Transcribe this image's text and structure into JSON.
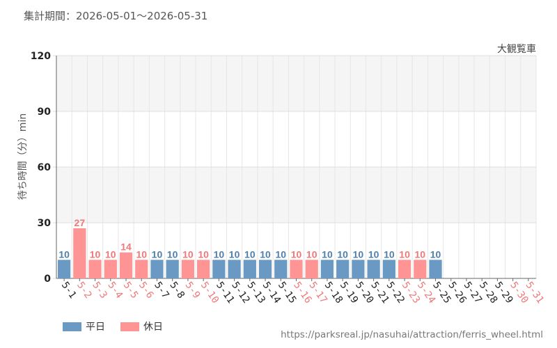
{
  "header": {
    "period": "集計期間：2026-05-01～2026-05-31",
    "attraction": "大観覧車"
  },
  "footer": {
    "source": "https://parksreal.jp/nasuhai/attraction/ferris_wheel.html"
  },
  "legend": [
    {
      "label": "平日",
      "color": "#6a9ac4"
    },
    {
      "label": "休日",
      "color": "#ff9494"
    }
  ],
  "chart_data": {
    "type": "bar",
    "ylabel": "待ち時間（分）min",
    "ylim": [
      0,
      120
    ],
    "yticks": [
      0,
      30,
      60,
      90,
      120
    ],
    "grid": true,
    "colors": {
      "weekday": "#6a9ac4",
      "holiday": "#ff9494",
      "weekday_text": "#4f80ad",
      "holiday_text": "#f07878"
    },
    "categories": [
      "5-1",
      "5-2",
      "5-3",
      "5-4",
      "5-5",
      "5-6",
      "5-7",
      "5-8",
      "5-9",
      "5-10",
      "5-11",
      "5-12",
      "5-13",
      "5-14",
      "5-15",
      "5-16",
      "5-17",
      "5-18",
      "5-19",
      "5-20",
      "5-21",
      "5-22",
      "5-23",
      "5-24",
      "5-25",
      "5-26",
      "5-27",
      "5-28",
      "5-29",
      "5-30",
      "5-31"
    ],
    "values": [
      10,
      27,
      10,
      10,
      14,
      10,
      10,
      10,
      10,
      10,
      10,
      10,
      10,
      10,
      10,
      10,
      10,
      10,
      10,
      10,
      10,
      10,
      10,
      10,
      10,
      null,
      null,
      null,
      null,
      null,
      null
    ],
    "holiday": [
      false,
      true,
      true,
      true,
      true,
      true,
      false,
      false,
      true,
      true,
      false,
      false,
      false,
      false,
      false,
      true,
      true,
      false,
      false,
      false,
      false,
      false,
      true,
      true,
      false,
      false,
      false,
      false,
      false,
      true,
      true
    ]
  }
}
